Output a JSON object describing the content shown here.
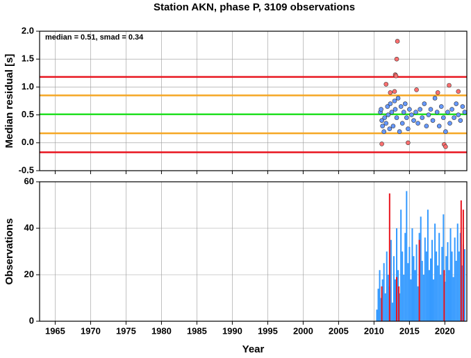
{
  "title": "Station AKN, phase P, 3109 observations",
  "chart_data": [
    {
      "type": "scatter",
      "ylabel": "Median residual [s]",
      "annotation": "median = 0.51, smad = 0.34",
      "xlim": [
        1962.8,
        2023.1
      ],
      "xticks": [
        1965,
        1970,
        1975,
        1980,
        1985,
        1990,
        1995,
        2000,
        2005,
        2010,
        2015,
        2020
      ],
      "ylim": [
        -0.5,
        2.0
      ],
      "yticks": [
        {
          "value": 2.0,
          "label": "2.0"
        },
        1.5,
        {
          "value": 1.0,
          "label": "1.0"
        },
        0.5,
        {
          "value": 0.0,
          "label": "0.0"
        },
        -0.5
      ],
      "grid": true,
      "hlines": [
        {
          "value": 1.18,
          "color": "#e8141e"
        },
        {
          "value": 0.85,
          "color": "#f5a623"
        },
        {
          "value": 0.51,
          "color": "#22e022"
        },
        {
          "value": 0.17,
          "color": "#f5a623"
        },
        {
          "value": -0.17,
          "color": "#e8141e"
        }
      ],
      "series": [
        {
          "color": "#6699ff",
          "x": [
            2010.9,
            2011.0,
            2011.1,
            2011.2,
            2011.4,
            2011.5,
            2011.7,
            2011.9,
            2012.0,
            2012.2,
            2012.3,
            2012.5,
            2012.7,
            2012.9,
            2013.0,
            2013.2,
            2013.4,
            2013.6,
            2013.8,
            2014.0,
            2014.2,
            2014.4,
            2014.6,
            2014.8,
            2015.0,
            2015.3,
            2015.6,
            2015.9,
            2016.2,
            2016.5,
            2016.8,
            2017.1,
            2017.4,
            2017.7,
            2018.0,
            2018.3,
            2018.6,
            2018.9,
            2019.2,
            2019.5,
            2019.8,
            2020.1,
            2020.4,
            2020.7,
            2021.0,
            2021.3,
            2021.6,
            2021.9,
            2022.2,
            2022.5,
            2022.8
          ],
          "values": [
            0.55,
            0.6,
            0.4,
            0.3,
            0.2,
            0.45,
            0.35,
            0.65,
            0.5,
            0.25,
            0.7,
            0.55,
            0.3,
            0.75,
            0.6,
            0.45,
            0.8,
            0.2,
            0.65,
            0.35,
            0.55,
            0.7,
            0.45,
            0.25,
            0.6,
            0.5,
            0.4,
            0.55,
            0.35,
            0.6,
            0.45,
            0.7,
            0.3,
            0.5,
            0.6,
            0.4,
            0.8,
            0.55,
            0.3,
            0.65,
            0.45,
            0.2,
            0.55,
            0.35,
            0.6,
            0.45,
            0.7,
            0.5,
            0.4,
            0.65,
            0.55
          ]
        },
        {
          "color": "#ff6f6f",
          "x": [
            2011.1,
            2011.7,
            2012.3,
            2012.9,
            2013.0,
            2013.1,
            2013.2,
            2013.3,
            2014.8,
            2016.0,
            2019.0,
            2019.9,
            2020.1,
            2020.6,
            2021.9
          ],
          "values": [
            -0.02,
            1.05,
            0.9,
            0.92,
            1.22,
            1.2,
            1.5,
            1.82,
            0.0,
            0.95,
            0.9,
            -0.03,
            -0.07,
            1.03,
            0.92
          ]
        }
      ]
    },
    {
      "type": "bar",
      "ylabel": "Observations",
      "xlabel": "Year",
      "xlim": [
        1962.8,
        2023.1
      ],
      "xticks": [
        1965,
        1970,
        1975,
        1980,
        1985,
        1990,
        1995,
        2000,
        2005,
        2010,
        2015,
        2020
      ],
      "ylim": [
        0,
        60
      ],
      "yticks": [
        0,
        20,
        40,
        60
      ],
      "grid": true,
      "series": [
        {
          "color": "#3399ff",
          "x": [
            2010.4,
            2010.6,
            2010.8,
            2011.0,
            2011.2,
            2011.4,
            2011.6,
            2011.8,
            2012.0,
            2012.2,
            2012.4,
            2012.6,
            2012.8,
            2013.0,
            2013.2,
            2013.4,
            2013.6,
            2013.8,
            2014.0,
            2014.2,
            2014.4,
            2014.6,
            2014.8,
            2015.0,
            2015.2,
            2015.4,
            2015.6,
            2015.8,
            2016.0,
            2016.2,
            2016.4,
            2016.6,
            2016.8,
            2017.0,
            2017.2,
            2017.4,
            2017.6,
            2017.8,
            2018.0,
            2018.2,
            2018.4,
            2018.6,
            2018.8,
            2019.0,
            2019.2,
            2019.4,
            2019.6,
            2019.8,
            2020.0,
            2020.2,
            2020.4,
            2020.6,
            2020.8,
            2021.0,
            2021.2,
            2021.4,
            2021.6,
            2021.8,
            2022.0,
            2022.2,
            2022.4,
            2022.6,
            2022.8
          ],
          "values": [
            5,
            14,
            22,
            10,
            18,
            25,
            12,
            30,
            20,
            15,
            35,
            8,
            28,
            18,
            40,
            22,
            12,
            48,
            30,
            20,
            38,
            56,
            25,
            32,
            18,
            40,
            28,
            22,
            33,
            15,
            38,
            45,
            26,
            20,
            36,
            30,
            48,
            22,
            27,
            35,
            18,
            42,
            30,
            24,
            38,
            20,
            32,
            46,
            17,
            28,
            34,
            22,
            40,
            30,
            19,
            36,
            26,
            42,
            30,
            38,
            24,
            33,
            31
          ]
        },
        {
          "color": "#e8141e",
          "x": [
            2011.1,
            2012.2,
            2013.2,
            2013.5,
            2016.4,
            2019.9,
            2022.3,
            2022.6
          ],
          "values": [
            15,
            55,
            19,
            15,
            35,
            22,
            52,
            48
          ]
        }
      ]
    }
  ]
}
